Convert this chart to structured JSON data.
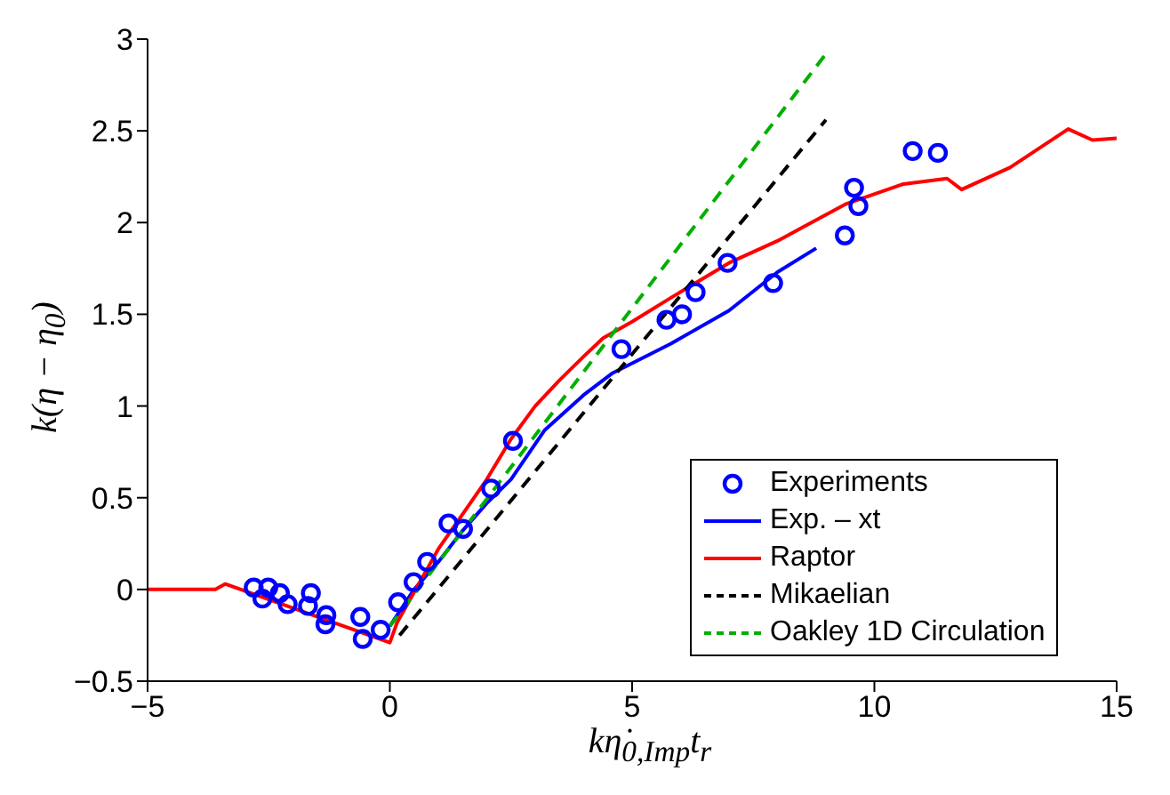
{
  "chart_data": {
    "type": "line",
    "xlabel": "kη̇$_{0,Imp}$t$_{r}$",
    "ylabel": "k(η − η$_{0}$)",
    "xlim": [
      -5,
      15
    ],
    "xticks": [
      -5,
      0,
      5,
      10,
      15
    ],
    "ylim": [
      -0.5,
      3
    ],
    "yticks": [
      -0.5,
      0,
      0.5,
      1,
      1.5,
      2,
      2.5,
      3
    ],
    "grid": false,
    "legend": "bottom right",
    "series": [
      {
        "name": "Experiments",
        "type": "scatter",
        "marker": "circle",
        "color": "#0000ff",
        "x": [
          -2.81,
          -2.63,
          -2.51,
          -2.27,
          -2.11,
          -1.63,
          -1.69,
          -1.31,
          -1.33,
          -0.61,
          -0.56,
          -0.19,
          0.17,
          0.49,
          0.77,
          1.21,
          1.51,
          2.09,
          2.54,
          4.78,
          5.71,
          6.03,
          6.31,
          6.97,
          7.91,
          9.39,
          9.58,
          9.67,
          10.79,
          11.31
        ],
        "values": [
          0.01,
          -0.05,
          0.01,
          -0.02,
          -0.08,
          -0.02,
          -0.09,
          -0.14,
          -0.19,
          -0.15,
          -0.27,
          -0.22,
          -0.07,
          0.04,
          0.15,
          0.36,
          0.33,
          0.55,
          0.81,
          1.31,
          1.47,
          1.5,
          1.62,
          1.78,
          1.67,
          1.93,
          2.19,
          2.09,
          2.39,
          2.38
        ]
      },
      {
        "name": "Exp. – xt",
        "line_style": "solid",
        "color": "#0000ff",
        "x": [
          0,
          0.5,
          1,
          1.5,
          2,
          2.5,
          3.2,
          4,
          4.6,
          5.8,
          7,
          8,
          8.8
        ],
        "values": [
          -0.2,
          0,
          0.15,
          0.32,
          0.47,
          0.6,
          0.87,
          1.06,
          1.18,
          1.34,
          1.52,
          1.73,
          1.86
        ]
      },
      {
        "name": "Raptor",
        "line_style": "solid",
        "color": "#ff0000",
        "x": [
          -5,
          -3.6,
          -3.4,
          0,
          0.15,
          1,
          2,
          2.5,
          3,
          3.5,
          4,
          4.4,
          5,
          5.8,
          7,
          8,
          9.4,
          10.6,
          11.5,
          11.8,
          12.8,
          14,
          14.5,
          15
        ],
        "values": [
          0,
          0,
          0.03,
          -0.29,
          -0.18,
          0.22,
          0.6,
          0.82,
          1,
          1.14,
          1.27,
          1.37,
          1.46,
          1.59,
          1.78,
          1.9,
          2.1,
          2.21,
          2.24,
          2.18,
          2.3,
          2.51,
          2.45,
          2.46
        ]
      },
      {
        "name": "Mikaelian",
        "line_style": "dashed",
        "color": "#000000",
        "x": [
          0.2,
          9
        ],
        "values": [
          -0.25,
          2.56
        ]
      },
      {
        "name": "Oakley 1D Circulation",
        "line_style": "dashed",
        "color": "#00b000",
        "x": [
          0,
          9
        ],
        "values": [
          -0.2,
          2.92
        ]
      }
    ]
  }
}
